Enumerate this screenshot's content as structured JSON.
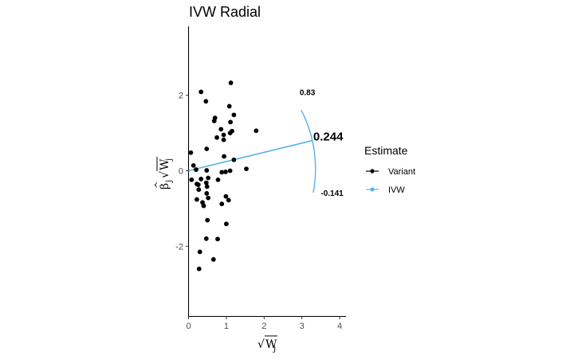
{
  "chart_data": {
    "type": "scatter",
    "title": "IVW Radial",
    "xlabel": "√W_j",
    "ylabel": "β̂_j √W_j",
    "xlim": [
      0,
      4.2
    ],
    "ylim": [
      -3.85,
      3.85
    ],
    "x_ticks": [
      0,
      1,
      2,
      3,
      4
    ],
    "y_ticks": [
      -2,
      0,
      2
    ],
    "grid": false,
    "legend": {
      "title": "Estimate",
      "position": "right",
      "entries": [
        {
          "label": "Variant",
          "color": "#000000",
          "marker": "point-line"
        },
        {
          "label": "IVW",
          "color": "#56B4E9",
          "marker": "point-line"
        }
      ]
    },
    "series": [
      {
        "name": "Variant",
        "color": "#000000",
        "points": [
          {
            "x": 0.33,
            "y": 2.09
          },
          {
            "x": 1.12,
            "y": 2.33
          },
          {
            "x": 0.46,
            "y": 1.84
          },
          {
            "x": 1.08,
            "y": 1.71
          },
          {
            "x": 0.7,
            "y": 1.4
          },
          {
            "x": 0.68,
            "y": 1.32
          },
          {
            "x": 1.2,
            "y": 1.48
          },
          {
            "x": 1.11,
            "y": 1.29
          },
          {
            "x": 0.86,
            "y": 1.1
          },
          {
            "x": 1.15,
            "y": 1.05
          },
          {
            "x": 1.1,
            "y": 1.0
          },
          {
            "x": 1.79,
            "y": 1.06
          },
          {
            "x": 0.75,
            "y": 0.88
          },
          {
            "x": 0.93,
            "y": 0.95
          },
          {
            "x": 0.93,
            "y": 0.82
          },
          {
            "x": 0.48,
            "y": 0.58
          },
          {
            "x": 0.06,
            "y": 0.48
          },
          {
            "x": 0.94,
            "y": 0.38
          },
          {
            "x": 1.2,
            "y": 0.29
          },
          {
            "x": 0.13,
            "y": 0.14
          },
          {
            "x": 0.2,
            "y": 0.03
          },
          {
            "x": 0.48,
            "y": 0.01
          },
          {
            "x": 0.88,
            "y": -0.04
          },
          {
            "x": 0.98,
            "y": -0.03
          },
          {
            "x": 1.1,
            "y": 0.0
          },
          {
            "x": 1.53,
            "y": 0.05
          },
          {
            "x": 0.52,
            "y": -0.19
          },
          {
            "x": 0.33,
            "y": -0.22
          },
          {
            "x": 0.08,
            "y": -0.24
          },
          {
            "x": 0.47,
            "y": -0.32
          },
          {
            "x": 0.78,
            "y": -0.24
          },
          {
            "x": 0.22,
            "y": -0.35
          },
          {
            "x": 0.26,
            "y": -0.37
          },
          {
            "x": 0.49,
            "y": -0.42
          },
          {
            "x": 0.27,
            "y": -0.5
          },
          {
            "x": 0.48,
            "y": -0.6
          },
          {
            "x": 0.99,
            "y": -0.68
          },
          {
            "x": 0.52,
            "y": -0.72
          },
          {
            "x": 1.06,
            "y": -0.78
          },
          {
            "x": 0.22,
            "y": -0.76
          },
          {
            "x": 0.37,
            "y": -0.84
          },
          {
            "x": 0.4,
            "y": -0.93
          },
          {
            "x": 0.88,
            "y": -0.88
          },
          {
            "x": 0.5,
            "y": -1.31
          },
          {
            "x": 1.0,
            "y": -1.41
          },
          {
            "x": 0.47,
            "y": -1.8
          },
          {
            "x": 0.77,
            "y": -1.81
          },
          {
            "x": 0.3,
            "y": -2.15
          },
          {
            "x": 0.66,
            "y": -2.35
          },
          {
            "x": 0.28,
            "y": -2.6
          }
        ]
      },
      {
        "name": "IVW",
        "color": "#56B4E9",
        "slope": 0.244,
        "x_range": [
          0,
          3.28
        ],
        "arc_radius": 3.38,
        "arc_start": {
          "x": 2.98,
          "y": 1.61
        },
        "arc_end": {
          "x": 3.3,
          "y": -0.58
        }
      }
    ],
    "annotations": [
      {
        "text": "0.244",
        "x": 3.3,
        "y": 0.8,
        "size": "large"
      },
      {
        "text": "0.83",
        "x": 2.94,
        "y": 2.0,
        "size": "small"
      },
      {
        "text": "-0.141",
        "x": 3.5,
        "y": -0.66,
        "size": "small"
      }
    ]
  }
}
